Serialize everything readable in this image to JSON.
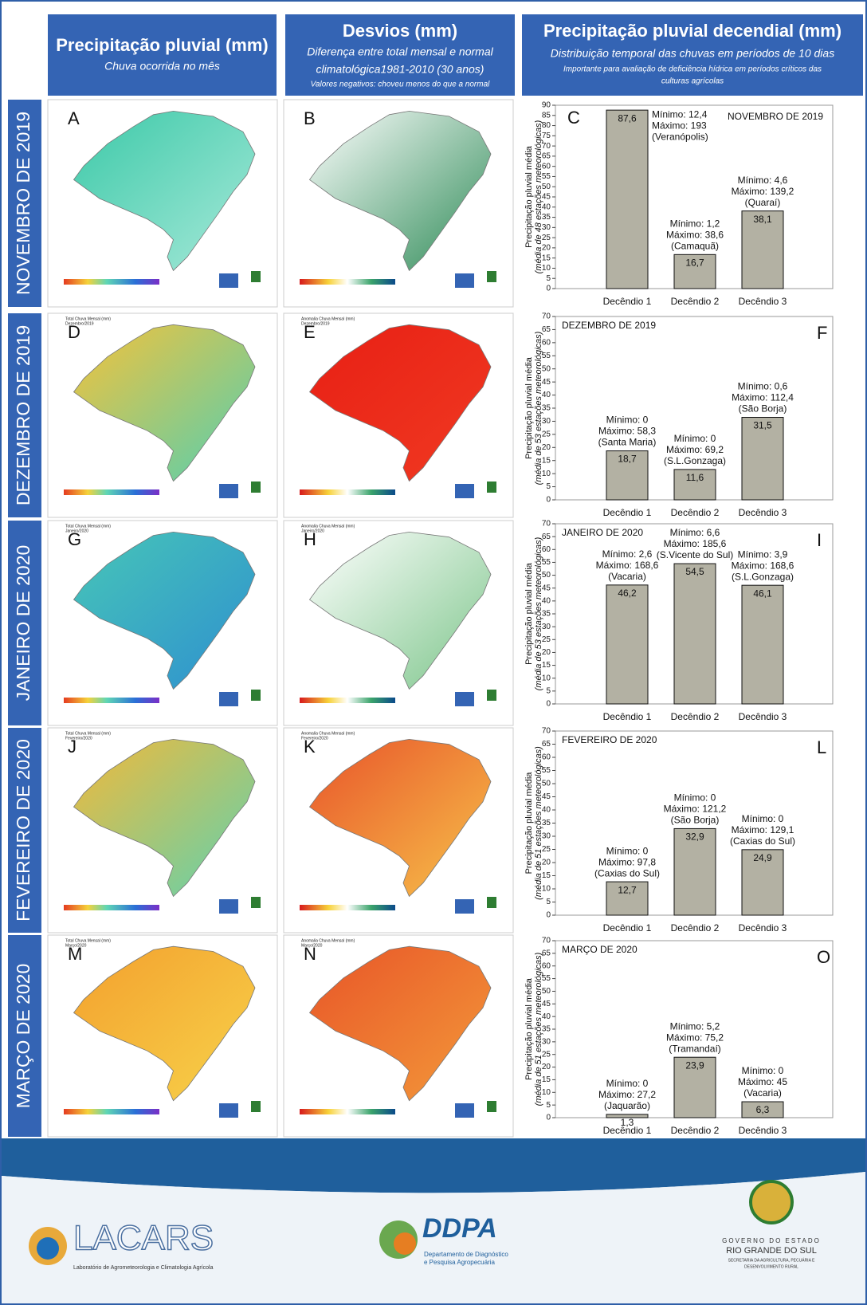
{
  "header": {
    "columns": [
      {
        "title": "Precipitação pluvial (mm)",
        "lines": [
          "Chuva ocorrida no mês"
        ]
      },
      {
        "title": "Desvios (mm)",
        "lines": [
          "Diferença entre total mensal e normal",
          "climatológica1981-2010 (30 anos)",
          "Valores negativos: choveu menos do que a normal"
        ]
      },
      {
        "title": "Precipitação pluvial decendial (mm)",
        "lines": [
          "Distribuição temporal das chuvas em períodos de 10 dias",
          "Importante para avaliação de deficiência hídrica em períodos críticos das",
          "culturas agrícolas"
        ]
      }
    ]
  },
  "rows": [
    {
      "label": "NOVEMBRO DE 2019",
      "maps": [
        {
          "letter": "A"
        },
        {
          "letter": "B"
        }
      ]
    },
    {
      "label": "DEZEMBRO DE 2019",
      "maps": [
        {
          "letter": "D",
          "caption": [
            "Total Chuva Mensal (mm)",
            "Dezembro/2019"
          ]
        },
        {
          "letter": "E",
          "caption": [
            "Anomalia Chuva Mensal (mm)",
            "Dezembro/2019"
          ]
        }
      ]
    },
    {
      "label": "JANEIRO DE 2020",
      "maps": [
        {
          "letter": "G",
          "caption": [
            "Total Chuva Mensal (mm)",
            "Janeiro/2020"
          ]
        },
        {
          "letter": "H",
          "caption": [
            "Anomalia Chuva Mensal (mm)",
            "Janeiro/2020"
          ]
        }
      ]
    },
    {
      "label": "FEVEREIRO DE 2020",
      "maps": [
        {
          "letter": "J",
          "caption": [
            "Total Chuva Mensal (mm)",
            "Fevereiro/2020"
          ]
        },
        {
          "letter": "K",
          "caption": [
            "Anomalia Chuva Mensal (mm)",
            "Fevereiro/2020"
          ]
        }
      ]
    },
    {
      "label": "MARÇO DE 2020",
      "maps": [
        {
          "letter": "M",
          "caption": [
            "Total Chuva Mensal (mm)",
            "Março/2020"
          ]
        },
        {
          "letter": "N",
          "caption": [
            "Anomalia Chuva Mensal (mm)",
            "Março/2020"
          ]
        }
      ]
    }
  ],
  "chart_data": [
    {
      "type": "bar",
      "title": "NOVEMBRO DE 2019",
      "letter": "C",
      "y_label": [
        "Precipitação pluvial média",
        "(média de 48 estações meteorológicas)"
      ],
      "categories": [
        "Decêndio 1",
        "Decêndio 2",
        "Decêndio 3"
      ],
      "values": [
        87.6,
        16.7,
        38.1
      ],
      "value_labels": [
        "87,6",
        "16,7",
        "38,1"
      ],
      "annotations": [
        [
          "Mínimo: 12,4",
          "Máximo: 193",
          "(Veranópolis)"
        ],
        [
          "Mínimo: 1,2",
          "Máximo: 38,6",
          "(Camaquã)"
        ],
        [
          "Mínimo: 4,6",
          "Máximo: 139,2",
          "(Quaraí)"
        ]
      ],
      "color": "#b3b1a3",
      "ylim": [
        0,
        90
      ],
      "yticks": [
        0,
        5,
        10,
        15,
        20,
        25,
        30,
        35,
        40,
        45,
        50,
        55,
        60,
        65,
        70,
        75,
        80,
        85,
        90
      ]
    },
    {
      "type": "bar",
      "title": "DEZEMBRO DE 2019",
      "letter": "F",
      "y_label": [
        "Precipitação pluvial média",
        "(média de 53 estações meteorológicas)"
      ],
      "categories": [
        "Decêndio 1",
        "Decêndio 2",
        "Decêndio 3"
      ],
      "values": [
        18.7,
        11.6,
        31.5
      ],
      "value_labels": [
        "18,7",
        "11,6",
        "31,5"
      ],
      "annotations": [
        [
          "Mínimo: 0",
          "Máximo: 58,3",
          "(Santa Maria)"
        ],
        [
          "Mínimo: 0",
          "Máximo: 69,2",
          "(S.L.Gonzaga)"
        ],
        [
          "Mínimo: 0,6",
          "Máximo: 112,4",
          "(São Borja)"
        ]
      ],
      "color": "#b3b1a3",
      "ylim": [
        0,
        70
      ],
      "yticks": [
        0,
        5,
        10,
        15,
        20,
        25,
        30,
        35,
        40,
        45,
        50,
        55,
        60,
        65,
        70
      ]
    },
    {
      "type": "bar",
      "title": "JANEIRO DE 2020",
      "letter": "I",
      "y_label": [
        "Precipitação pluvial média",
        "(média de 53 estações meteorológicas)"
      ],
      "categories": [
        "Decêndio 1",
        "Decêndio 2",
        "Decêndio 3"
      ],
      "values": [
        46.2,
        54.5,
        46.1
      ],
      "value_labels": [
        "46,2",
        "54,5",
        "46,1"
      ],
      "annotations": [
        [
          "Mínimo: 2,6",
          "Máximo: 168,6",
          "(Vacaria)"
        ],
        [
          "Mínimo: 6,6",
          "Máximo: 185,6",
          "(S.Vicente do Sul)"
        ],
        [
          "Mínimo: 3,9",
          "Máximo: 168,6",
          "(S.L.Gonzaga)"
        ]
      ],
      "color": "#b3b1a3",
      "ylim": [
        0,
        70
      ],
      "yticks": [
        0,
        5,
        10,
        15,
        20,
        25,
        30,
        35,
        40,
        45,
        50,
        55,
        60,
        65,
        70
      ]
    },
    {
      "type": "bar",
      "title": "FEVEREIRO DE 2020",
      "letter": "L",
      "y_label": [
        "Precipitação pluvial média",
        "(média de 51 estações meteorológicas)"
      ],
      "categories": [
        "Decêndio 1",
        "Decêndio 2",
        "Decêndio 3"
      ],
      "values": [
        12.7,
        32.9,
        24.9
      ],
      "value_labels": [
        "12,7",
        "32,9",
        "24,9"
      ],
      "annotations": [
        [
          "Mínimo: 0",
          "Máximo: 97,8",
          "(Caxias do Sul)"
        ],
        [
          "Mínimo: 0",
          "Máximo: 121,2",
          "(São Borja)"
        ],
        [
          "Mínimo: 0",
          "Máximo: 129,1",
          "(Caxias do Sul)"
        ]
      ],
      "color": "#b3b1a3",
      "ylim": [
        0,
        70
      ],
      "yticks": [
        0,
        5,
        10,
        15,
        20,
        25,
        30,
        35,
        40,
        45,
        50,
        55,
        60,
        65,
        70
      ]
    },
    {
      "type": "bar",
      "title": "MARÇO DE 2020",
      "letter": "O",
      "y_label": [
        "Precipitação pluvial média",
        "(média de 51 estações meteorológicas)"
      ],
      "categories": [
        "Decêndio 1",
        "Decêndio 2",
        "Decêndio 3"
      ],
      "values": [
        1.3,
        23.9,
        6.3
      ],
      "value_labels": [
        "1,3",
        "23,9",
        "6,3"
      ],
      "annotations": [
        [
          "Mínimo: 0",
          "Máximo: 27,2",
          "(Jaquarão)"
        ],
        [
          "Mínimo: 5,2",
          "Máximo: 75,2",
          "(Tramandaí)"
        ],
        [
          "Mínimo: 0",
          "Máximo: 45",
          "(Vacaria)"
        ]
      ],
      "color": "#b3b1a3",
      "ylim": [
        0,
        70
      ],
      "yticks": [
        0,
        5,
        10,
        15,
        20,
        25,
        30,
        35,
        40,
        45,
        50,
        55,
        60,
        65,
        70
      ]
    }
  ],
  "footer": {
    "lacars": {
      "name": "LACARS",
      "subtitle": "Laboratório de Agrometeorologia e Climatologia Agrícola"
    },
    "ddpa": {
      "name": "DDPA",
      "subtitle": [
        "Departamento de Diagnóstico",
        "e Pesquisa Agropecuária"
      ]
    },
    "government": {
      "lines": [
        "GOVERNO DO ESTADO",
        "RIO GRANDE DO SUL",
        "SECRETARIA DA AGRICULTURA, PECUÁRIA E",
        "DESENVOLVIMENTO RURAL"
      ]
    }
  }
}
